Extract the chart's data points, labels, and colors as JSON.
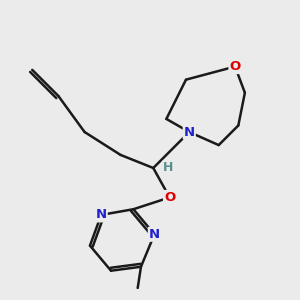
{
  "background_color": "#ebebeb",
  "bond_color": "#1a1a1a",
  "bond_width": 1.8,
  "atom_colors": {
    "N": "#2222cc",
    "O": "#dd0000",
    "H": "#5a9090"
  },
  "font_size": 9.5
}
